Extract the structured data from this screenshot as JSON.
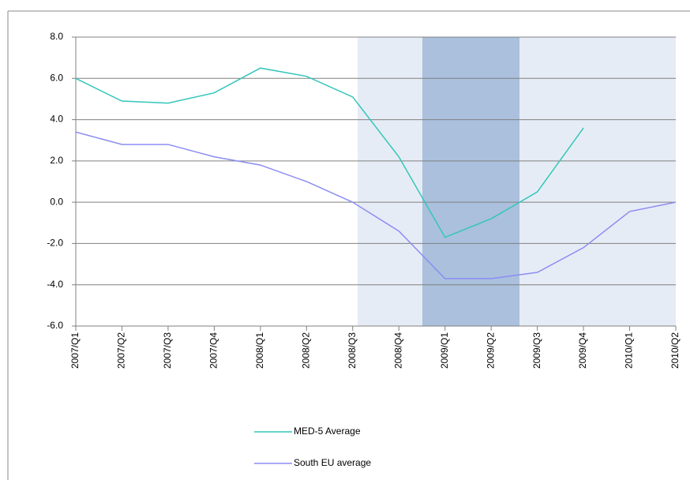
{
  "chart_data": {
    "type": "line",
    "categories": [
      "2007/Q1",
      "2007/Q2",
      "2007/Q3",
      "2007/Q4",
      "2008/Q1",
      "2008/Q2",
      "2008/Q3",
      "2008/Q4",
      "2009/Q1",
      "2009/Q2",
      "2009/Q3",
      "2009/Q4",
      "2010/Q1",
      "2010/Q2"
    ],
    "series": [
      {
        "name": "MED-5 Average",
        "color": "#33c6bb",
        "values": [
          6.0,
          4.9,
          4.8,
          5.3,
          6.5,
          6.1,
          5.1,
          2.2,
          -1.7,
          -0.8,
          0.5,
          3.6,
          null,
          null
        ]
      },
      {
        "name": "South EU average",
        "color": "#8c8cf2",
        "values": [
          3.4,
          2.8,
          2.8,
          2.2,
          1.8,
          1.0,
          0.0,
          -1.4,
          -3.7,
          -3.7,
          -3.4,
          -2.2,
          -0.45,
          0.0
        ]
      }
    ],
    "ylim": [
      -6,
      8
    ],
    "yticks": [
      {
        "value": -6,
        "label": "-6.0"
      },
      {
        "value": -4,
        "label": "-4.0"
      },
      {
        "value": -2,
        "label": "-2.0"
      },
      {
        "value": 0,
        "label": "0.0"
      },
      {
        "value": 2,
        "label": "2.0"
      },
      {
        "value": 4,
        "label": "4.0"
      },
      {
        "value": 6,
        "label": "6.0"
      },
      {
        "value": 8,
        "label": "8.0"
      }
    ],
    "grid": true
  }
}
